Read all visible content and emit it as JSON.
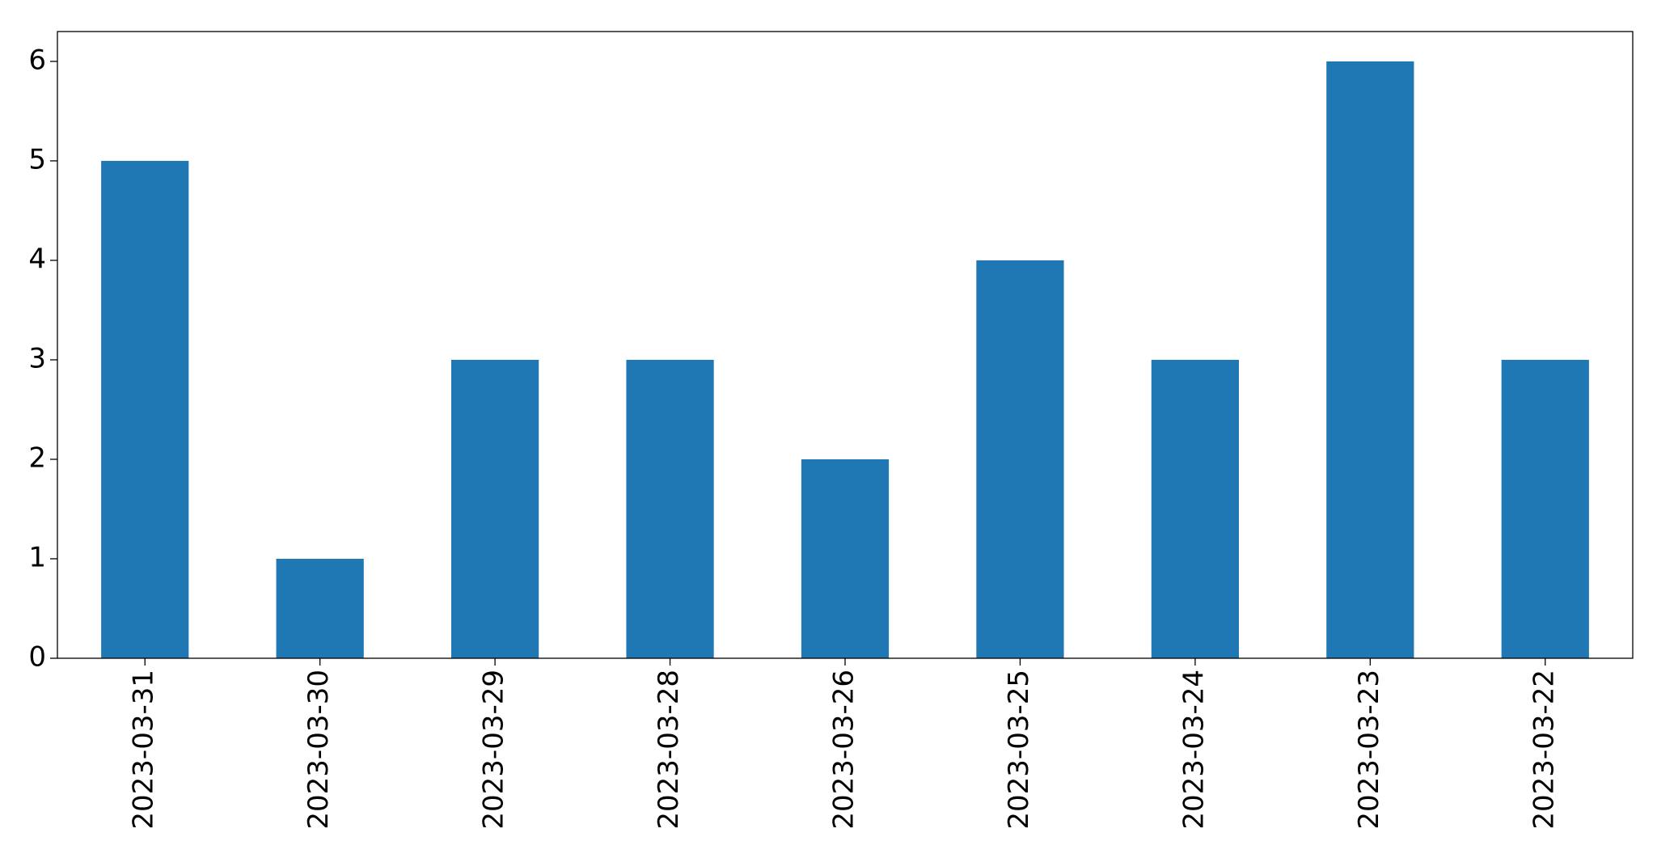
{
  "chart_data": {
    "type": "bar",
    "categories": [
      "2023-03-31",
      "2023-03-30",
      "2023-03-29",
      "2023-03-28",
      "2023-03-26",
      "2023-03-25",
      "2023-03-24",
      "2023-03-23",
      "2023-03-22"
    ],
    "values": [
      5,
      1,
      3,
      3,
      2,
      4,
      3,
      6,
      3
    ],
    "color": "#1f77b4",
    "ylim": [
      0,
      6.3
    ],
    "yticks": [
      0,
      1,
      2,
      3,
      4,
      5,
      6
    ],
    "grid": false
  }
}
